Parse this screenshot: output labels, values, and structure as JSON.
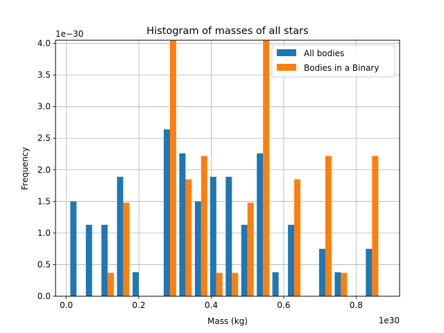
{
  "chart_data": {
    "type": "bar",
    "title": "Histogram of masses of all stars",
    "xlabel": "Mass (kg)",
    "ylabel": "Frequency",
    "x_multiplier": "1e30",
    "y_multiplier": "1e−30",
    "xlim": [
      -0.03,
      0.92
    ],
    "ylim": [
      0,
      4.05
    ],
    "xticks": [
      0.0,
      0.2,
      0.4,
      0.6,
      0.8
    ],
    "xtick_labels": [
      "0.0",
      "0.2",
      "0.4",
      "0.6",
      "0.8"
    ],
    "yticks": [
      0,
      0.5,
      1.0,
      1.5,
      2.0,
      2.5,
      3.0,
      3.5,
      4.0
    ],
    "ytick_labels": [
      "0.0",
      "0.5",
      "1.0",
      "1.5",
      "2.0",
      "2.5",
      "3.0",
      "3.5",
      "4.0"
    ],
    "grid": true,
    "legend_position": "top-right",
    "bin_centers": [
      0.028,
      0.071,
      0.114,
      0.157,
      0.2,
      0.286,
      0.329,
      0.372,
      0.414,
      0.457,
      0.5,
      0.543,
      0.586,
      0.629,
      0.672,
      0.715,
      0.758,
      0.801,
      0.844
    ],
    "series": [
      {
        "name": "All bodies",
        "color": "#1f77b4",
        "values": [
          1.5,
          1.13,
          1.13,
          1.89,
          0.38,
          2.64,
          2.26,
          1.5,
          1.89,
          1.89,
          1.13,
          2.26,
          0.38,
          1.13,
          0,
          0.75,
          0.38,
          0,
          0.75
        ]
      },
      {
        "name": "Bodies in a Binary",
        "color": "#ff7f0e",
        "values": [
          0,
          0,
          0.37,
          1.48,
          0,
          4.05,
          1.85,
          2.22,
          0.37,
          0.37,
          1.48,
          4.05,
          0,
          1.85,
          0,
          2.22,
          0.37,
          0,
          2.22
        ]
      }
    ]
  }
}
